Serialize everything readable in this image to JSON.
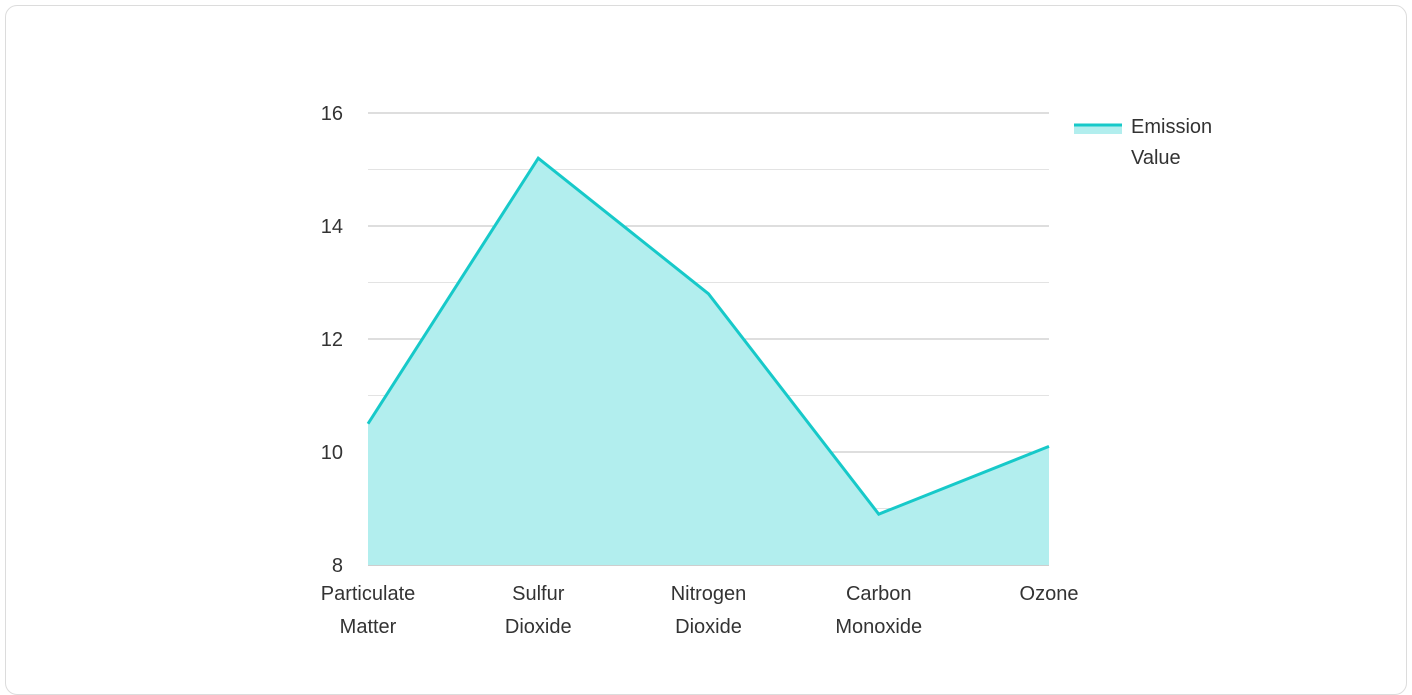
{
  "chart_data": {
    "type": "area",
    "categories": [
      [
        "Particulate",
        "Matter"
      ],
      [
        "Sulfur",
        "Dioxide"
      ],
      [
        "Nitrogen",
        "Dioxide"
      ],
      [
        "Carbon",
        "Monoxide"
      ],
      [
        "Ozone"
      ]
    ],
    "series": [
      {
        "name": "Emission Value",
        "name_lines": [
          "Emission",
          "Value"
        ],
        "values": [
          10.5,
          15.2,
          12.8,
          8.9,
          10.1
        ],
        "color": "#17c9c9",
        "fill": "#b2eeee"
      }
    ],
    "ylim": [
      8,
      16
    ],
    "yticks": [
      "8",
      "10",
      "12",
      "14",
      "16"
    ],
    "ytick_values": [
      8,
      10,
      12,
      14,
      16
    ],
    "minor_gridlines": [
      9,
      11,
      13,
      15
    ],
    "grid": true,
    "legend_position": "top-right",
    "colors": {
      "grid_major": "#bdbdbd",
      "grid_minor": "#e3e3e3",
      "axis": "#9e9e9e"
    }
  }
}
